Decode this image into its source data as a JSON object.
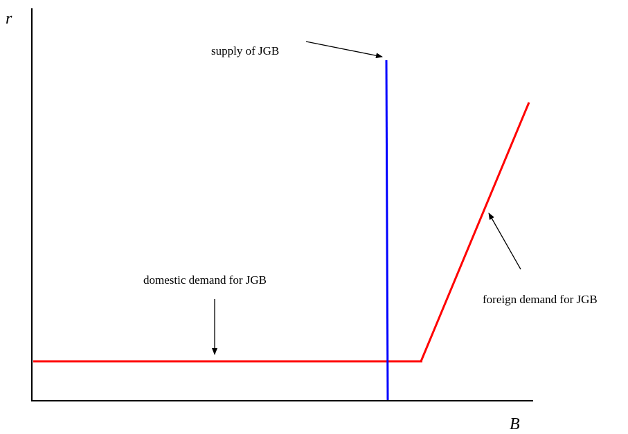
{
  "axes": {
    "y_label": "r",
    "x_label": "B"
  },
  "labels": {
    "supply": "supply of JGB",
    "domestic_demand": "domestic demand for JGB",
    "foreign_demand": "foreign demand for JGB"
  },
  "colors": {
    "axis": "#000000",
    "supply": "#0000ff",
    "demand": "#ff0000",
    "arrow": "#000000"
  }
}
